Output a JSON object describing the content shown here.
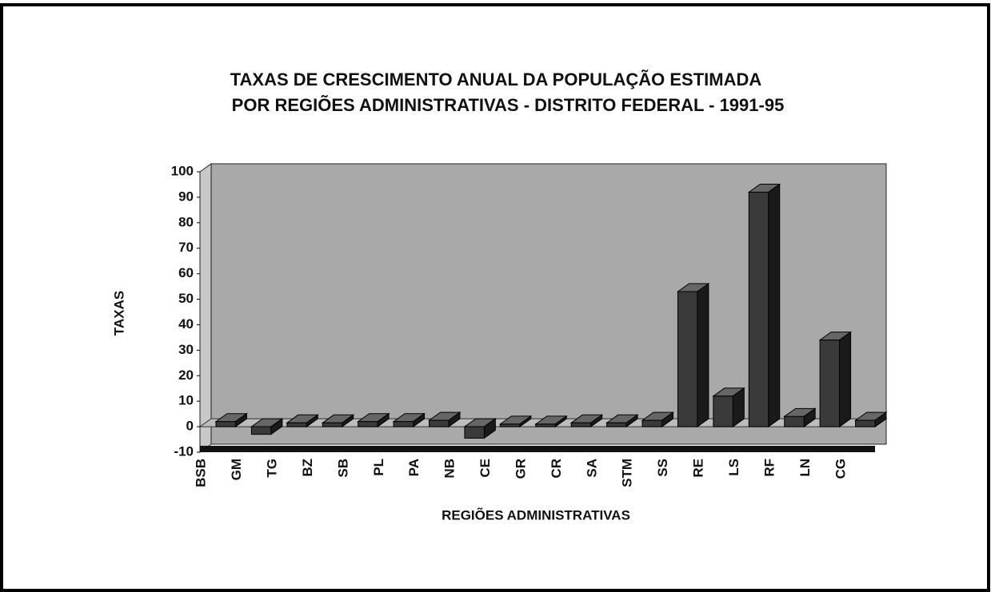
{
  "chart_data": {
    "type": "bar3d",
    "title": [
      "TAXAS DE CRESCIMENTO ANUAL DA POPULAÇÃO ESTIMADA",
      "POR REGIÕES ADMINISTRATIVAS - DISTRITO FEDERAL - 1991-95"
    ],
    "x_label": "REGIÕES ADMINISTRATIVAS",
    "y_label": "TAXAS",
    "categories": [
      "BSB",
      "GM",
      "TG",
      "BZ",
      "SB",
      "PL",
      "PA",
      "NB",
      "CE",
      "GR",
      "CR",
      "SA",
      "STM",
      "SS",
      "RE",
      "LS",
      "RF",
      "LN",
      "CG"
    ],
    "values": [
      2,
      -3,
      1.5,
      1.5,
      2,
      2,
      2.5,
      -4.5,
      1,
      1,
      1.5,
      1.5,
      2.5,
      53,
      12,
      92,
      4,
      34,
      2.5
    ],
    "color": "#3a3a3a",
    "ylim": [
      -10,
      100
    ],
    "yticks": [
      -10,
      0,
      10,
      20,
      30,
      40,
      50,
      60,
      70,
      80,
      90,
      100
    ]
  }
}
